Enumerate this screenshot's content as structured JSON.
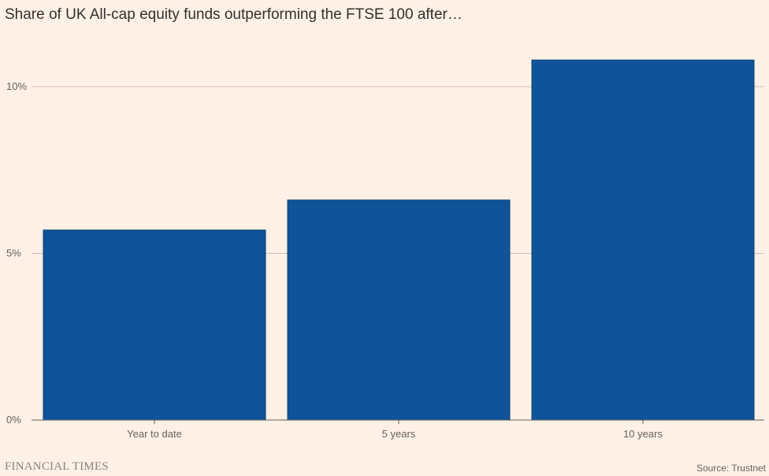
{
  "chart_data": {
    "type": "bar",
    "title": "Share of UK All-cap equity funds outperforming the FTSE 100 after…",
    "categories": [
      "Year to date",
      "5 years",
      "10 years"
    ],
    "values": [
      5.7,
      6.6,
      10.8
    ],
    "xlabel": "",
    "ylabel": "",
    "ylim": [
      0,
      11
    ],
    "yticks": [
      0,
      5,
      10
    ],
    "ytick_labels": [
      "0%",
      "5%",
      "10%"
    ],
    "grid": true,
    "legend": "none"
  },
  "colors": {
    "background": "#fff1e5",
    "bar": "#0f5499",
    "grid": "#ccc1b7",
    "axis": "#66605c"
  },
  "footer": {
    "brand": "FINANCIAL TIMES",
    "source": "Source: Trustnet"
  }
}
